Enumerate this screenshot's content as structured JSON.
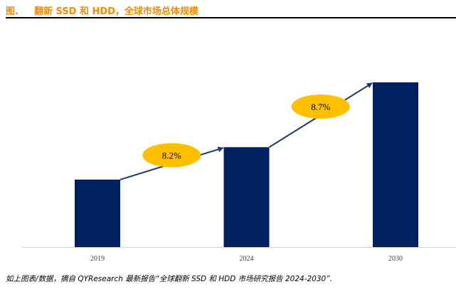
{
  "figure": {
    "label": "图.",
    "title": "翻新 SSD 和 HDD，全球市场总体规模",
    "source": "如上图表/数据，摘自 QYResearch 最新报告“全球翻新 SSD 和 HDD 市场研究报告 2024-2030”."
  },
  "colors": {
    "title": "#f28c00",
    "bar": "#002060",
    "bubble": "#ffc000",
    "axis": "#d9d9d9"
  },
  "chart_data": {
    "type": "bar",
    "categories": [
      "2019",
      "2024",
      "2030"
    ],
    "values": [
      1.0,
      1.48,
      2.44
    ],
    "y_axis_shown": false,
    "grid": false,
    "annotations": [
      {
        "from": "2019",
        "to": "2024",
        "label": "8.2%"
      },
      {
        "from": "2024",
        "to": "2030",
        "label": "8.7%"
      }
    ]
  }
}
